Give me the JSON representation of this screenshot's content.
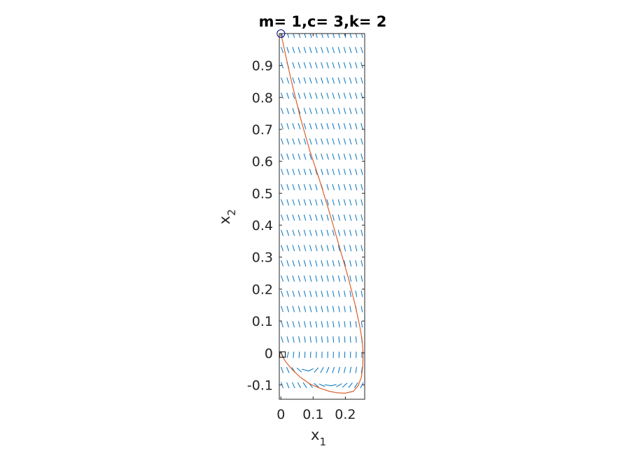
{
  "chart_data": {
    "type": "line",
    "title": "m= 1,c= 3,k= 2",
    "xlabel": "x",
    "xlabel_subscript": "1",
    "ylabel": "x",
    "ylabel_subscript": "2",
    "xlim": [
      -0.005,
      0.26
    ],
    "ylim": [
      -0.145,
      1.0
    ],
    "x_ticks": [
      0,
      0.1,
      0.2
    ],
    "x_tick_labels": [
      "0",
      "0.1",
      "0.2"
    ],
    "y_ticks": [
      -0.1,
      0,
      0.1,
      0.2,
      0.3,
      0.4,
      0.5,
      0.6,
      0.7,
      0.8,
      0.9
    ],
    "y_tick_labels": [
      "-0.1",
      "0",
      "0.1",
      "0.2",
      "0.3",
      "0.4",
      "0.5",
      "0.6",
      "0.7",
      "0.8",
      "0.9"
    ],
    "grid": false,
    "system": {
      "m": 1,
      "c": 3,
      "k": 2
    },
    "direction_field": {
      "color": "#0072BD"
    },
    "series": [
      {
        "color": "#D95319",
        "points": [
          [
            0.0,
            1.0
          ],
          [
            0.03,
            0.862
          ],
          [
            0.06,
            0.738
          ],
          [
            0.09,
            0.632
          ],
          [
            0.12,
            0.541
          ],
          [
            0.15,
            0.442
          ],
          [
            0.18,
            0.338
          ],
          [
            0.21,
            0.232
          ],
          [
            0.23,
            0.152
          ],
          [
            0.245,
            0.082
          ],
          [
            0.252,
            0.04
          ],
          [
            0.255,
            0.0
          ],
          [
            0.254,
            -0.04
          ],
          [
            0.25,
            -0.075
          ],
          [
            0.24,
            -0.102
          ],
          [
            0.225,
            -0.12
          ],
          [
            0.2,
            -0.126
          ],
          [
            0.175,
            -0.125
          ],
          [
            0.15,
            -0.12
          ],
          [
            0.12,
            -0.11
          ],
          [
            0.09,
            -0.097
          ],
          [
            0.06,
            -0.076
          ],
          [
            0.035,
            -0.052
          ],
          [
            0.015,
            -0.028
          ],
          [
            0.004,
            -0.01
          ],
          [
            0.0,
            0.0
          ]
        ]
      }
    ],
    "markers": [
      {
        "shape": "circle",
        "x": 0.0,
        "y": 1.0,
        "color": "#00008B"
      },
      {
        "shape": "square",
        "x": 0.005,
        "y": -0.005,
        "color": "#000000"
      }
    ]
  }
}
